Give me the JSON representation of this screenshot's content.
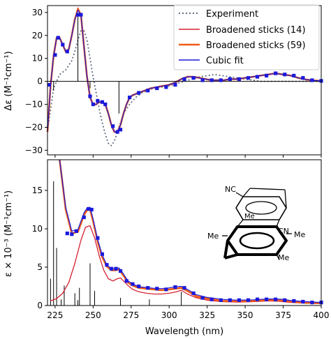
{
  "colors": {
    "experiment": "#5f6b80",
    "broadened14": "#d62030",
    "broadened59": "#f05a14",
    "cubic": "#1a1adc",
    "points": "#1a1adc",
    "sticks": "#000000"
  },
  "chart_data": [
    {
      "type": "line",
      "panel": "top",
      "title": "",
      "ylabel": "Δε (M⁻¹cm⁻¹)",
      "xlabel": "",
      "xlim": [
        220,
        400
      ],
      "ylim": [
        -32,
        33
      ],
      "yticks": [
        -30,
        -20,
        -10,
        0,
        10,
        20,
        30
      ],
      "grid": false,
      "legend_position": "top-right",
      "legend": [
        {
          "name": "Experiment",
          "style": "dotted",
          "color": "#5f6b80"
        },
        {
          "name": "Broadened sticks (14)",
          "style": "solid-thin",
          "color": "#d62030"
        },
        {
          "name": "Broadened sticks (59)",
          "style": "solid-thick",
          "color": "#f05a14"
        },
        {
          "name": "Cubic fit",
          "style": "solid-thin",
          "color": "#1a1adc"
        }
      ],
      "series": [
        {
          "name": "Experiment",
          "x": [
            220,
            224,
            228,
            232,
            236,
            238,
            240,
            242,
            244,
            246,
            248,
            250,
            252,
            254,
            256,
            258,
            260,
            262,
            264,
            266,
            268,
            270,
            274,
            278,
            282,
            290,
            300,
            310,
            320,
            330,
            340,
            350,
            360,
            370,
            380,
            390,
            400
          ],
          "y": [
            -22,
            -3,
            3,
            5,
            9,
            13,
            18,
            22,
            22,
            18,
            10,
            2,
            -5,
            -12,
            -18,
            -23,
            -27,
            -28,
            -26,
            -22,
            -18,
            -14,
            -10,
            -7,
            -5,
            -3,
            -2,
            0,
            2,
            3,
            2,
            1,
            0,
            0,
            0,
            0,
            0
          ]
        },
        {
          "name": "Broadened sticks (14)",
          "x": [
            220,
            222,
            224,
            226,
            228,
            230,
            232,
            234,
            236,
            238,
            240,
            242,
            244,
            246,
            248,
            250,
            252,
            254,
            256,
            258,
            260,
            262,
            264,
            266,
            268,
            270,
            272,
            274,
            276,
            280,
            284,
            288,
            292,
            296,
            300,
            304,
            308,
            312,
            316,
            320,
            324,
            328,
            332,
            336,
            340,
            345,
            350,
            355,
            360,
            365,
            370,
            375,
            380,
            385,
            390,
            395,
            400
          ],
          "y": [
            -22,
            -2,
            11,
            19,
            19,
            16,
            13,
            14,
            20,
            27,
            32,
            29,
            15,
            2,
            -7,
            -10,
            -10,
            -9,
            -9,
            -10,
            -14,
            -19,
            -22,
            -22,
            -19,
            -14,
            -10,
            -7,
            -6,
            -5,
            -4,
            -3,
            -2.5,
            -2,
            -1.5,
            -0.5,
            1,
            2,
            2,
            1.5,
            1,
            0.5,
            0.5,
            0.5,
            1,
            1,
            1.5,
            2,
            2.5,
            3,
            3.5,
            3,
            2.5,
            1.5,
            0.8,
            0.4,
            0.2
          ]
        },
        {
          "name": "Broadened sticks (59)",
          "x": [
            220,
            222,
            224,
            226,
            228,
            230,
            232,
            234,
            236,
            238,
            240,
            242,
            244,
            246,
            248,
            250,
            252,
            254,
            256,
            258,
            260,
            262,
            264,
            266,
            268,
            270,
            272,
            274,
            276,
            280,
            284,
            288,
            292,
            296,
            300,
            304,
            308,
            312,
            316,
            320,
            324,
            328,
            332,
            336,
            340,
            345,
            350,
            355,
            360,
            365,
            370,
            375,
            380,
            385,
            390,
            395,
            400
          ],
          "y": [
            -22,
            -2,
            11,
            19,
            19,
            16,
            13,
            14,
            20,
            27,
            31.5,
            29,
            15,
            2,
            -7,
            -10,
            -10,
            -9,
            -9,
            -10,
            -14,
            -19,
            -22,
            -22,
            -19,
            -14,
            -10,
            -7,
            -6,
            -5,
            -4,
            -3,
            -2.5,
            -2,
            -1.5,
            -0.5,
            1,
            2,
            2,
            1.5,
            1,
            0.5,
            0.5,
            0.5,
            1,
            1,
            1.5,
            2,
            2.5,
            3,
            3.5,
            3,
            2.5,
            1.5,
            0.8,
            0.4,
            0.2
          ]
        },
        {
          "name": "Cubic fit",
          "x": [
            220,
            222,
            224,
            226,
            228,
            230,
            232,
            234,
            236,
            238,
            240,
            242,
            244,
            246,
            248,
            250,
            252,
            254,
            256,
            258,
            260,
            262,
            264,
            266,
            268,
            270,
            272,
            274,
            276,
            280,
            284,
            288,
            292,
            296,
            300,
            304,
            308,
            312,
            316,
            320,
            324,
            328,
            332,
            336,
            340,
            345,
            350,
            355,
            360,
            365,
            370,
            375,
            380,
            385,
            390,
            395,
            400
          ],
          "y": [
            -22,
            -2,
            11,
            19,
            19,
            16,
            13,
            14,
            20,
            27,
            31,
            29,
            15,
            2,
            -7,
            -10,
            -10,
            -9,
            -9,
            -10,
            -14,
            -19,
            -22,
            -22,
            -19,
            -14,
            -10,
            -7,
            -6,
            -5,
            -4,
            -3,
            -2.5,
            -2,
            -1.5,
            -0.5,
            1,
            2,
            2,
            1.5,
            1,
            0.5,
            0.5,
            0.5,
            1,
            1,
            1.5,
            2,
            2.5,
            3,
            3.5,
            3,
            2.5,
            1.5,
            0.8,
            0.4,
            0.2
          ]
        }
      ],
      "points": {
        "x": [
          221,
          225,
          227,
          230,
          233,
          240,
          242,
          248,
          250,
          253,
          256,
          258,
          263,
          266,
          268,
          274,
          280,
          286,
          292,
          298,
          304,
          310,
          316,
          322,
          328,
          334,
          340,
          346,
          352,
          358,
          364,
          370,
          376,
          382,
          388,
          394,
          400
        ],
        "y": [
          -1.5,
          11.5,
          19,
          16,
          13,
          29,
          29,
          -6.5,
          -10,
          -8.5,
          -9,
          -10,
          -19.5,
          -22,
          -21,
          -7,
          -5,
          -4,
          -3,
          -2.5,
          -1.5,
          1,
          1.5,
          0.5,
          0.5,
          0.5,
          1,
          1,
          1.5,
          2,
          2.5,
          3.5,
          3,
          2.5,
          1.5,
          0.5,
          0.2
        ]
      },
      "sticks": {
        "x": [
          224,
          240,
          248,
          267
        ],
        "y": [
          -4,
          29,
          -3,
          -14
        ]
      }
    },
    {
      "type": "line",
      "panel": "bottom",
      "title": "",
      "ylabel": "ε × 10⁻³ (M⁻¹cm⁻¹)",
      "xlabel": "Wavelength (nm)",
      "xlim": [
        220,
        400
      ],
      "xticks": [
        225,
        250,
        275,
        300,
        325,
        350,
        375,
        400
      ],
      "ylim": [
        0,
        19
      ],
      "yticks": [
        0,
        5,
        10,
        15
      ],
      "grid": false,
      "series": [
        {
          "name": "Broadened sticks (14)",
          "x": [
            222,
            226,
            230,
            234,
            238,
            242,
            245,
            248,
            251,
            254,
            257,
            260,
            263,
            266,
            268,
            270,
            273,
            276,
            280,
            285,
            290,
            295,
            300,
            305,
            308,
            312,
            318,
            325,
            335,
            345,
            355,
            365,
            372,
            380,
            390,
            400
          ],
          "y": [
            0.6,
            0.9,
            1.6,
            3,
            5.5,
            8.5,
            10.2,
            10.4,
            8.8,
            6.5,
            4.6,
            3.5,
            3.2,
            3.5,
            3.6,
            3.2,
            2.6,
            2.1,
            1.8,
            1.6,
            1.5,
            1.5,
            1.6,
            1.8,
            2,
            1.5,
            1.0,
            0.7,
            0.5,
            0.45,
            0.5,
            0.6,
            0.55,
            0.4,
            0.3,
            0.25
          ]
        },
        {
          "name": "Broadened sticks (59)",
          "x": [
            228,
            232,
            236,
            240,
            244,
            246,
            248,
            250,
            253,
            256,
            259,
            262,
            265,
            267,
            270,
            273,
            276,
            280,
            285,
            290,
            295,
            300,
            304,
            308,
            312,
            318,
            325,
            335,
            345,
            355,
            365,
            370,
            375,
            380,
            390,
            400
          ],
          "y": [
            19,
            12.5,
            9.4,
            9.6,
            11.8,
            12.4,
            12.5,
            11,
            8.3,
            6.3,
            5.1,
            4.6,
            4.6,
            4.7,
            3.9,
            3,
            2.6,
            2.3,
            2.2,
            2.1,
            2,
            2.1,
            2.2,
            2.3,
            1.9,
            1.2,
            0.9,
            0.6,
            0.55,
            0.6,
            0.7,
            0.7,
            0.65,
            0.5,
            0.35,
            0.3
          ]
        },
        {
          "name": "Cubic fit",
          "x": [
            228,
            232,
            236,
            240,
            244,
            246,
            248,
            250,
            253,
            256,
            259,
            262,
            265,
            267,
            270,
            273,
            276,
            280,
            285,
            290,
            295,
            300,
            304,
            308,
            312,
            318,
            325,
            335,
            345,
            355,
            365,
            370,
            375,
            380,
            390,
            400
          ],
          "y": [
            19,
            12.8,
            9.7,
            9.9,
            12.1,
            12.7,
            12.8,
            11.3,
            8.6,
            6.6,
            5.3,
            4.8,
            4.8,
            4.9,
            4.1,
            3.2,
            2.8,
            2.45,
            2.35,
            2.25,
            2.2,
            2.3,
            2.45,
            2.5,
            2.1,
            1.4,
            1.05,
            0.8,
            0.7,
            0.75,
            0.85,
            0.85,
            0.8,
            0.65,
            0.5,
            0.4
          ]
        }
      ],
      "points": {
        "x": [
          233,
          236,
          239,
          244,
          247,
          249,
          253,
          256,
          259,
          262,
          265,
          268,
          272,
          276,
          280,
          286,
          292,
          298,
          304,
          310,
          316,
          322,
          328,
          334,
          340,
          346,
          352,
          358,
          364,
          370,
          376,
          382,
          388,
          394,
          400
        ],
        "y": [
          9.4,
          9.3,
          9.7,
          11.5,
          12.6,
          12.5,
          8.8,
          6.7,
          5.3,
          4.8,
          4.8,
          4.5,
          3.2,
          2.8,
          2.5,
          2.3,
          2.2,
          2.1,
          2.4,
          2.3,
          1.6,
          1.0,
          0.8,
          0.7,
          0.7,
          0.7,
          0.7,
          0.8,
          0.8,
          0.8,
          0.7,
          0.6,
          0.5,
          0.4,
          0.4
        ]
      },
      "sticks": {
        "x": [
          222,
          224,
          226,
          229,
          231,
          238,
          240,
          241,
          248,
          251,
          268,
          287,
          308
        ],
        "y": [
          3.5,
          16.2,
          7.5,
          0.8,
          2.6,
          1.6,
          0.7,
          2.3,
          5.5,
          1.9,
          1.0,
          0.8,
          1.8
        ]
      }
    }
  ],
  "molecule": {
    "labels": [
      "NC",
      "Me",
      "CN",
      "Me",
      "Me",
      "Me"
    ]
  }
}
